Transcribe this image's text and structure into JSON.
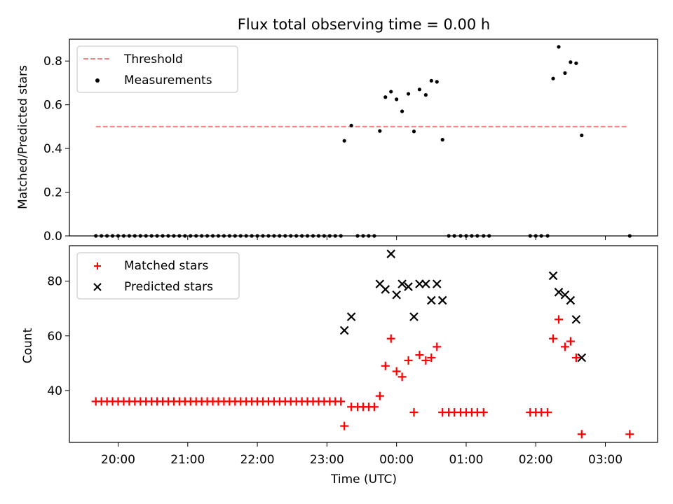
{
  "chart_data": [
    {
      "type": "scatter",
      "title": "Flux total observing time = 0.00 h",
      "xlabel": "",
      "ylabel": "Matched/Predicted stars",
      "ylim": [
        0,
        0.9
      ],
      "yticks": [
        0.0,
        0.2,
        0.4,
        0.6,
        0.8
      ],
      "ytick_labels": [
        "0.0",
        "0.2",
        "0.4",
        "0.6",
        "0.8"
      ],
      "xlim": [
        19.3,
        27.75
      ],
      "grid": false,
      "legend_position": "top-left",
      "threshold": {
        "name": "Threshold",
        "y": 0.5,
        "x_range": [
          19.68,
          27.33
        ],
        "color": "#ff7f7f",
        "style": "dashed"
      },
      "series": [
        {
          "name": "Measurements",
          "marker": "dot",
          "color": "#000000",
          "points": [
            [
              19.68,
              0
            ],
            [
              19.76,
              0
            ],
            [
              19.84,
              0
            ],
            [
              19.92,
              0
            ],
            [
              20.0,
              0
            ],
            [
              20.08,
              0
            ],
            [
              20.16,
              0
            ],
            [
              20.24,
              0
            ],
            [
              20.32,
              0
            ],
            [
              20.4,
              0
            ],
            [
              20.48,
              0
            ],
            [
              20.56,
              0
            ],
            [
              20.64,
              0
            ],
            [
              20.72,
              0
            ],
            [
              20.8,
              0
            ],
            [
              20.88,
              0
            ],
            [
              20.96,
              0
            ],
            [
              21.04,
              0
            ],
            [
              21.12,
              0
            ],
            [
              21.2,
              0
            ],
            [
              21.28,
              0
            ],
            [
              21.36,
              0
            ],
            [
              21.44,
              0
            ],
            [
              21.52,
              0
            ],
            [
              21.6,
              0
            ],
            [
              21.68,
              0
            ],
            [
              21.76,
              0
            ],
            [
              21.84,
              0
            ],
            [
              21.92,
              0
            ],
            [
              22.0,
              0
            ],
            [
              22.08,
              0
            ],
            [
              22.16,
              0
            ],
            [
              22.24,
              0
            ],
            [
              22.32,
              0
            ],
            [
              22.4,
              0
            ],
            [
              22.48,
              0
            ],
            [
              22.56,
              0
            ],
            [
              22.64,
              0
            ],
            [
              22.72,
              0
            ],
            [
              22.8,
              0
            ],
            [
              22.88,
              0
            ],
            [
              22.96,
              0
            ],
            [
              23.04,
              0
            ],
            [
              23.12,
              0
            ],
            [
              23.2,
              0
            ],
            [
              23.25,
              0.435
            ],
            [
              23.35,
              0.505
            ],
            [
              23.44,
              0
            ],
            [
              23.52,
              0
            ],
            [
              23.6,
              0
            ],
            [
              23.68,
              0
            ],
            [
              23.76,
              0.48
            ],
            [
              23.84,
              0.635
            ],
            [
              23.92,
              0.66
            ],
            [
              24.0,
              0.625
            ],
            [
              24.08,
              0.57
            ],
            [
              24.17,
              0.65
            ],
            [
              24.25,
              0.478
            ],
            [
              24.33,
              0.67
            ],
            [
              24.42,
              0.645
            ],
            [
              24.5,
              0.71
            ],
            [
              24.58,
              0.705
            ],
            [
              24.66,
              0.44
            ],
            [
              24.75,
              0
            ],
            [
              24.83,
              0
            ],
            [
              24.92,
              0
            ],
            [
              25.0,
              0
            ],
            [
              25.08,
              0
            ],
            [
              25.16,
              0
            ],
            [
              25.25,
              0
            ],
            [
              25.33,
              0
            ],
            [
              25.92,
              0
            ],
            [
              26.0,
              0
            ],
            [
              26.08,
              0
            ],
            [
              26.17,
              0
            ],
            [
              26.25,
              0.72
            ],
            [
              26.33,
              0.865
            ],
            [
              26.42,
              0.745
            ],
            [
              26.5,
              0.795
            ],
            [
              26.58,
              0.79
            ],
            [
              26.66,
              0.46
            ],
            [
              27.35,
              0
            ]
          ]
        }
      ]
    },
    {
      "type": "scatter",
      "title": "",
      "xlabel": "Time (UTC)",
      "ylabel": "Count",
      "ylim": [
        21,
        93
      ],
      "yticks": [
        40,
        60,
        80
      ],
      "ytick_labels": [
        "40",
        "60",
        "80"
      ],
      "xlim": [
        19.3,
        27.75
      ],
      "xticks": [
        20,
        21,
        22,
        23,
        24,
        25,
        26,
        27
      ],
      "xtick_labels": [
        "20:00",
        "21:00",
        "22:00",
        "23:00",
        "00:00",
        "01:00",
        "02:00",
        "03:00"
      ],
      "grid": false,
      "legend_position": "top-left",
      "series": [
        {
          "name": "Matched stars",
          "marker": "plus",
          "color": "#ff0000",
          "points": [
            [
              19.68,
              36
            ],
            [
              19.76,
              36
            ],
            [
              19.84,
              36
            ],
            [
              19.92,
              36
            ],
            [
              20.0,
              36
            ],
            [
              20.08,
              36
            ],
            [
              20.16,
              36
            ],
            [
              20.24,
              36
            ],
            [
              20.32,
              36
            ],
            [
              20.4,
              36
            ],
            [
              20.48,
              36
            ],
            [
              20.56,
              36
            ],
            [
              20.64,
              36
            ],
            [
              20.72,
              36
            ],
            [
              20.8,
              36
            ],
            [
              20.88,
              36
            ],
            [
              20.96,
              36
            ],
            [
              21.04,
              36
            ],
            [
              21.12,
              36
            ],
            [
              21.2,
              36
            ],
            [
              21.28,
              36
            ],
            [
              21.36,
              36
            ],
            [
              21.44,
              36
            ],
            [
              21.52,
              36
            ],
            [
              21.6,
              36
            ],
            [
              21.68,
              36
            ],
            [
              21.76,
              36
            ],
            [
              21.84,
              36
            ],
            [
              21.92,
              36
            ],
            [
              22.0,
              36
            ],
            [
              22.08,
              36
            ],
            [
              22.16,
              36
            ],
            [
              22.24,
              36
            ],
            [
              22.32,
              36
            ],
            [
              22.4,
              36
            ],
            [
              22.48,
              36
            ],
            [
              22.56,
              36
            ],
            [
              22.64,
              36
            ],
            [
              22.72,
              36
            ],
            [
              22.8,
              36
            ],
            [
              22.88,
              36
            ],
            [
              22.96,
              36
            ],
            [
              23.04,
              36
            ],
            [
              23.12,
              36
            ],
            [
              23.2,
              36
            ],
            [
              23.25,
              27
            ],
            [
              23.35,
              34
            ],
            [
              23.44,
              34
            ],
            [
              23.52,
              34
            ],
            [
              23.6,
              34
            ],
            [
              23.68,
              34
            ],
            [
              23.76,
              38
            ],
            [
              23.84,
              49
            ],
            [
              23.92,
              59
            ],
            [
              24.0,
              47
            ],
            [
              24.08,
              45
            ],
            [
              24.17,
              51
            ],
            [
              24.25,
              32
            ],
            [
              24.33,
              53
            ],
            [
              24.42,
              51
            ],
            [
              24.5,
              52
            ],
            [
              24.58,
              56
            ],
            [
              24.66,
              32
            ],
            [
              24.75,
              32
            ],
            [
              24.83,
              32
            ],
            [
              24.92,
              32
            ],
            [
              25.0,
              32
            ],
            [
              25.08,
              32
            ],
            [
              25.16,
              32
            ],
            [
              25.25,
              32
            ],
            [
              25.92,
              32
            ],
            [
              26.0,
              32
            ],
            [
              26.08,
              32
            ],
            [
              26.17,
              32
            ],
            [
              26.25,
              59
            ],
            [
              26.33,
              66
            ],
            [
              26.42,
              56
            ],
            [
              26.5,
              58
            ],
            [
              26.58,
              52
            ],
            [
              26.66,
              24
            ],
            [
              27.35,
              24
            ]
          ]
        },
        {
          "name": "Predicted stars",
          "marker": "x",
          "color": "#000000",
          "points": [
            [
              23.25,
              62
            ],
            [
              23.35,
              67
            ],
            [
              23.76,
              79
            ],
            [
              23.84,
              77
            ],
            [
              23.92,
              90
            ],
            [
              24.0,
              75
            ],
            [
              24.08,
              79
            ],
            [
              24.17,
              78
            ],
            [
              24.25,
              67
            ],
            [
              24.33,
              79
            ],
            [
              24.42,
              79
            ],
            [
              24.5,
              73
            ],
            [
              24.58,
              79
            ],
            [
              24.66,
              73
            ],
            [
              26.25,
              82
            ],
            [
              26.33,
              76
            ],
            [
              26.42,
              75
            ],
            [
              26.5,
              73
            ],
            [
              26.58,
              66
            ],
            [
              26.66,
              52
            ]
          ]
        }
      ]
    }
  ]
}
